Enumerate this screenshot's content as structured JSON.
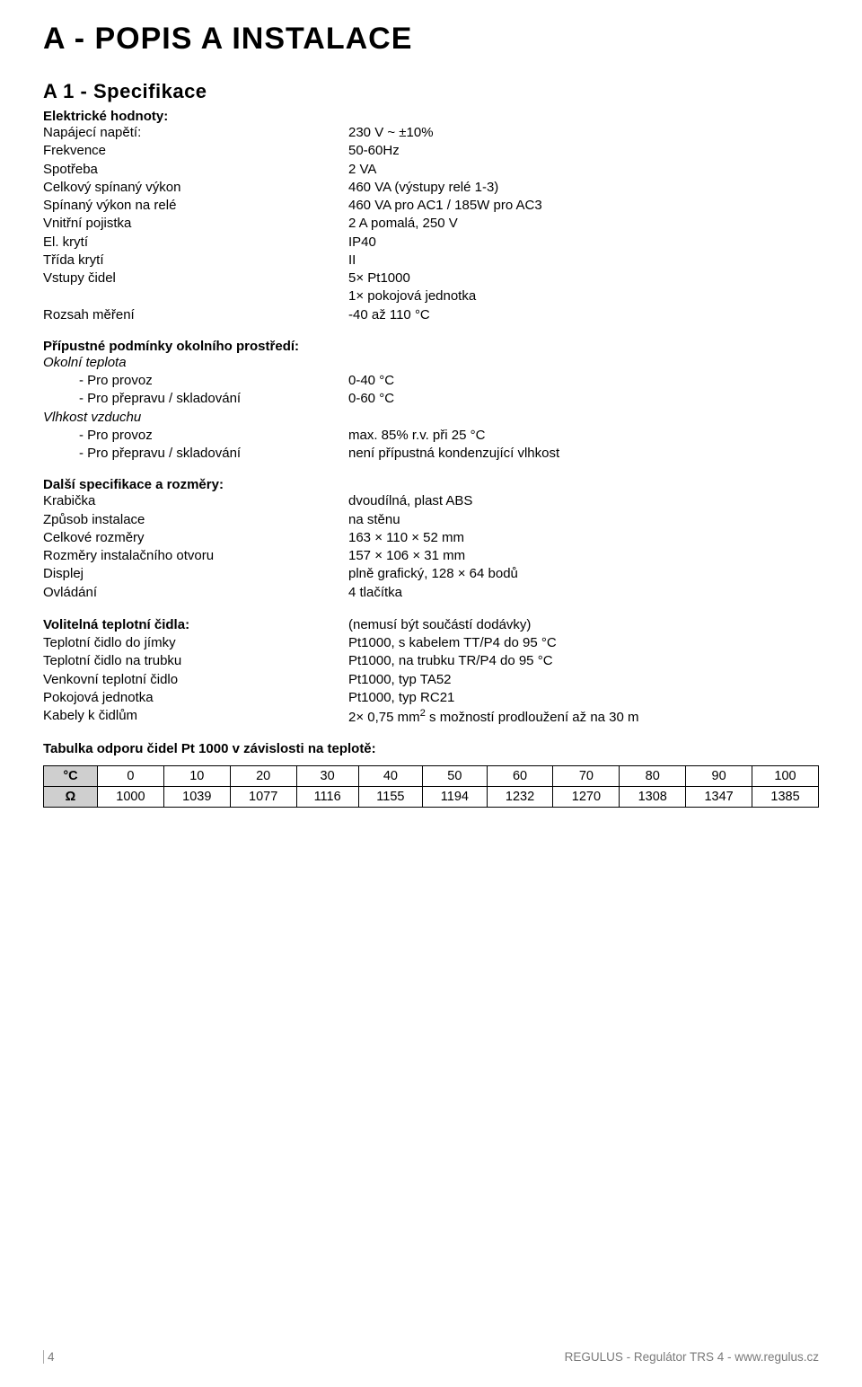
{
  "heading_main": "A - POPIS A INSTALACE",
  "heading_sub": "A 1 - Specifikace",
  "electrical": {
    "title": "Elektrické hodnoty:",
    "rows": [
      {
        "label": "Napájecí napětí:",
        "value": "230 V ~ ±10%"
      },
      {
        "label": "Frekvence",
        "value": "50-60Hz"
      },
      {
        "label": "Spotřeba",
        "value": "2 VA"
      },
      {
        "label": "Celkový spínaný výkon",
        "value": "460 VA (výstupy relé 1-3)"
      },
      {
        "label": "Spínaný výkon na relé",
        "value": "460 VA pro AC1 / 185W pro AC3"
      },
      {
        "label": "Vnitřní pojistka",
        "value": "2 A pomalá, 250 V"
      },
      {
        "label": "El. krytí",
        "value": "IP40"
      },
      {
        "label": "Třída krytí",
        "value": "II"
      },
      {
        "label": "Vstupy čidel",
        "value": "5× Pt1000"
      },
      {
        "label": "",
        "value": "1× pokojová jednotka"
      },
      {
        "label": "Rozsah měření",
        "value": "-40 až 110 °C"
      }
    ]
  },
  "ambient": {
    "title": "Přípustné podmínky okolního prostředí:",
    "temp_head": "Okolní teplota",
    "rows_temp": [
      {
        "label": "- Pro provoz",
        "value": "0-40 °C"
      },
      {
        "label": "- Pro přepravu / skladování",
        "value": "0-60 °C"
      }
    ],
    "hum_head": "Vlhkost vzduchu",
    "rows_hum": [
      {
        "label": "- Pro provoz",
        "value": "max. 85% r.v. při 25 °C"
      },
      {
        "label": "- Pro přepravu / skladování",
        "value": "není přípustná kondenzující vlhkost"
      }
    ]
  },
  "further": {
    "title": "Další specifikace a rozměry:",
    "rows": [
      {
        "label": "Krabička",
        "value": "dvoudílná, plast ABS"
      },
      {
        "label": "Způsob instalace",
        "value": "na stěnu"
      },
      {
        "label": "Celkové rozměry",
        "value": "163 × 110 × 52 mm"
      },
      {
        "label": "Rozměry instalačního otvoru",
        "value": "157 × 106 × 31 mm"
      },
      {
        "label": "Displej",
        "value": "plně grafický, 128 × 64 bodů"
      },
      {
        "label": "Ovládání",
        "value": "4 tlačítka"
      }
    ]
  },
  "optional": {
    "title": "Volitelná teplotní čidla:",
    "title_value": "(nemusí být součástí dodávky)",
    "rows": [
      {
        "label": "Teplotní čidlo do jímky",
        "value": "Pt1000, s kabelem TT/P4 do 95 °C"
      },
      {
        "label": "Teplotní čidlo na trubku",
        "value": "Pt1000, na trubku TR/P4 do 95 °C"
      },
      {
        "label": "Venkovní teplotní čidlo",
        "value": "Pt1000, typ TA52"
      },
      {
        "label": "Pokojová jednotka",
        "value": "Pt1000, typ RC21"
      }
    ],
    "cables_label": "Kabely k čidlům",
    "cables_value_pre": "2× 0,75 mm",
    "cables_value_sup": "2",
    "cables_value_post": " s možností prodloužení až na 30 m"
  },
  "resistance_table": {
    "title": "Tabulka odporu čidel Pt 1000 v závislosti na teplotě:",
    "row_headers": [
      "°C",
      "Ω"
    ],
    "columns_c": [
      "0",
      "10",
      "20",
      "30",
      "40",
      "50",
      "60",
      "70",
      "80",
      "90",
      "100"
    ],
    "columns_r": [
      "1000",
      "1039",
      "1077",
      "1116",
      "1155",
      "1194",
      "1232",
      "1270",
      "1308",
      "1347",
      "1385"
    ],
    "header_bg": "#cfcfcf",
    "border_color": "#000000"
  },
  "footer": {
    "page": "4",
    "right": "REGULUS - Regulátor TRS 4 - www.regulus.cz"
  }
}
